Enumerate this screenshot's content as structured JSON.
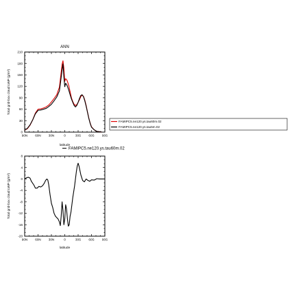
{
  "chart_data": [
    {
      "type": "line",
      "title": "ANN",
      "xlabel": "latitude",
      "ylabel": "Total grid-box cloud LWP (g/m²)",
      "xlim": [
        -90,
        90
      ],
      "ylim": [
        0,
        210
      ],
      "x_ticks": [
        "90N",
        "60N",
        "30N",
        "0",
        "30S",
        "60S",
        "90S"
      ],
      "y_ticks": [
        0,
        30,
        60,
        90,
        120,
        150,
        180,
        210
      ],
      "grid": false,
      "legend_position": "right",
      "series": [
        {
          "name": "FAMIPC5.ne120.ys.tau60m.02",
          "color": "#dd0000",
          "x": [
            -90,
            -84,
            -78,
            -72,
            -66,
            -60,
            -54,
            -48,
            -42,
            -36,
            -30,
            -24,
            -18,
            -12,
            -9,
            -6,
            -4,
            -2,
            0,
            2,
            4,
            6,
            9,
            12,
            15,
            18,
            21,
            24,
            27,
            30,
            33,
            36,
            39,
            42,
            45,
            48,
            51,
            54,
            57,
            60,
            66,
            72,
            78,
            84,
            90
          ],
          "y": [
            5,
            9,
            18,
            32,
            50,
            60,
            61,
            63,
            66,
            71,
            79,
            88,
            98,
            118,
            148,
            178,
            187,
            168,
            133,
            140,
            138,
            133,
            122,
            106,
            90,
            80,
            73,
            70,
            72,
            78,
            85,
            93,
            97,
            94,
            84,
            70,
            53,
            37,
            24,
            14,
            6,
            2,
            1,
            0,
            0
          ]
        },
        {
          "name": "FAMIPC5.ne120.ys.tau5m.02",
          "color": "#000000",
          "x": [
            -90,
            -84,
            -78,
            -72,
            -66,
            -60,
            -54,
            -48,
            -42,
            -36,
            -30,
            -24,
            -18,
            -12,
            -9,
            -6,
            -4,
            -2,
            0,
            2,
            4,
            6,
            9,
            12,
            15,
            18,
            21,
            24,
            27,
            30,
            33,
            36,
            39,
            42,
            45,
            48,
            51,
            54,
            57,
            60,
            66,
            72,
            78,
            84,
            90
          ],
          "y": [
            5,
            10,
            19,
            32,
            48,
            57,
            58,
            60,
            62,
            67,
            73,
            82,
            92,
            108,
            135,
            162,
            179,
            145,
            119,
            128,
            125,
            120,
            110,
            98,
            87,
            78,
            70,
            66,
            70,
            78,
            88,
            96,
            98,
            93,
            82,
            68,
            52,
            36,
            23,
            13,
            6,
            2,
            1,
            0,
            0
          ]
        }
      ]
    },
    {
      "type": "line",
      "title": "",
      "xlabel": "latitude",
      "ylabel": "Total grid-box cloud LWP (g/m²)",
      "xlim": [
        -90,
        90
      ],
      "ylim": [
        -20,
        8
      ],
      "x_ticks": [
        "90N",
        "60N",
        "30N",
        "0",
        "30S",
        "60S",
        "90S"
      ],
      "y_ticks": [
        -20,
        -16,
        -12,
        -8,
        -4,
        0,
        4,
        8
      ],
      "grid": false,
      "legend_position": "top",
      "series": [
        {
          "name": "FAMIPC5.ne120.ys.tau60m.02",
          "color": "#000000",
          "x": [
            -90,
            -86,
            -82,
            -78,
            -75,
            -72,
            -69,
            -66,
            -62,
            -58,
            -54,
            -50,
            -46,
            -43,
            -40,
            -38,
            -36,
            -33,
            -30,
            -27,
            -24,
            -21,
            -18,
            -15,
            -12,
            -10,
            -8,
            -6,
            -4,
            -2,
            0,
            2,
            4,
            6,
            8,
            10,
            12,
            14,
            16,
            18,
            20,
            22,
            24,
            26,
            28,
            30,
            32,
            34,
            36,
            38,
            40,
            44,
            48,
            52,
            56,
            60,
            66,
            72,
            78,
            84,
            90
          ],
          "y": [
            0,
            0.4,
            0.6,
            0.3,
            -0.8,
            -1.5,
            -2.2,
            -3.2,
            -3.2,
            -2.6,
            -2.8,
            -2.4,
            -1.5,
            -0.5,
            0,
            -0.4,
            -2,
            -5.5,
            -8.5,
            -10,
            -12,
            -13,
            -13.5,
            -14,
            -15,
            -16.3,
            -13,
            -8,
            -11,
            -16,
            -14,
            -9,
            -10.5,
            -14,
            -16.5,
            -16,
            -13,
            -11.5,
            -9,
            -6.5,
            -4.5,
            -2.5,
            0,
            2.5,
            4.5,
            5.5,
            4.5,
            3,
            1.5,
            0.5,
            -0.5,
            -1,
            0,
            -0.5,
            -0.8,
            -0.3,
            -0.4,
            0.1,
            0,
            0,
            0
          ]
        }
      ]
    }
  ]
}
